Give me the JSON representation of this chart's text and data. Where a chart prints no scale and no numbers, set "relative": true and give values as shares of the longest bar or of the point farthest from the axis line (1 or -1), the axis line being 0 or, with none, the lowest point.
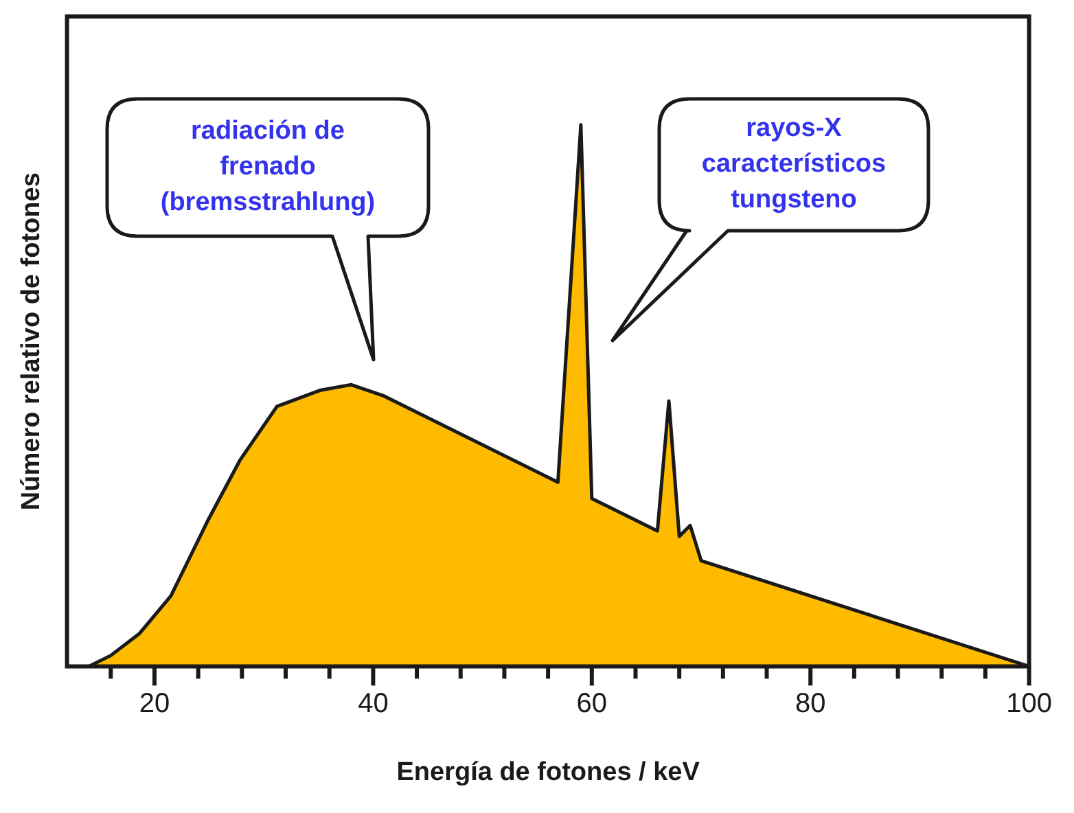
{
  "chart_data": {
    "type": "area",
    "relative": true,
    "xlabel": "Energía de fotones / keV",
    "ylabel": "Número relativo de fotones",
    "x": [
      14,
      16,
      18.6,
      21.5,
      24.9,
      27.8,
      31.2,
      35.2,
      38,
      40.9,
      56.9,
      59,
      60,
      66,
      67.05,
      68,
      69,
      70,
      100
    ],
    "series": [
      {
        "color": "#ffbb00",
        "values": [
          0,
          0.02,
          0.06,
          0.13,
          0.27,
          0.38,
          0.48,
          0.51,
          0.52,
          0.5,
          0.34,
          1,
          0.31,
          0.25,
          0.49,
          0.24,
          0.26,
          0.195,
          0
        ]
      }
    ],
    "xlim": [
      12,
      100
    ],
    "xticks": [
      {
        "value": 16,
        "label": null
      },
      20,
      {
        "value": 24,
        "label": null
      },
      {
        "value": 28,
        "label": null
      },
      {
        "value": 32,
        "label": null
      },
      {
        "value": 36,
        "label": null
      },
      40,
      {
        "value": 44,
        "label": null
      },
      {
        "value": 48,
        "label": null
      },
      {
        "value": 52,
        "label": null
      },
      {
        "value": 56,
        "label": null
      },
      60,
      {
        "value": 64,
        "label": null
      },
      {
        "value": 68,
        "label": null
      },
      {
        "value": 72,
        "label": null
      },
      {
        "value": 76,
        "label": null
      },
      80,
      {
        "value": 84,
        "label": null
      },
      {
        "value": 88,
        "label": null
      },
      {
        "value": 92,
        "label": null
      },
      {
        "value": 96,
        "label": null
      },
      100
    ],
    "annotations": [
      "radiación de\nfrenado\n(bremsstrahlung)",
      "rayos-X\ncaracterísticos\ntungsteno"
    ],
    "grid": false,
    "legend": false,
    "line_style": "solid",
    "marker": "none"
  }
}
